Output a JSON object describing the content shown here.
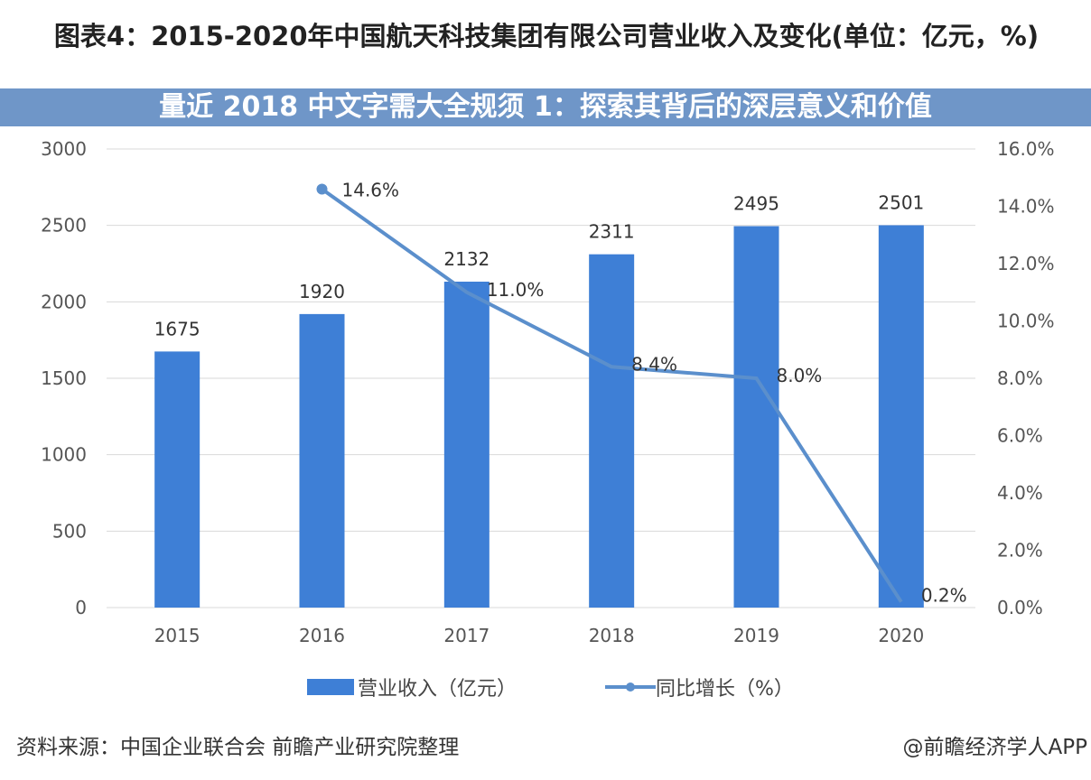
{
  "title": "图表4：2015-2020年中国航天科技集团有限公司营业收入及变化(单位：亿元，%)",
  "banner": "量近 2018 中文字需大全规须 1：探索其背后的深层意义和价值",
  "source": "资料来源：中国企业联合会 前瞻产业研究院整理",
  "brand": "@前瞻经济学人APP",
  "chart_data": {
    "type": "bar+line",
    "categories": [
      "2015",
      "2016",
      "2017",
      "2018",
      "2019",
      "2020"
    ],
    "series": [
      {
        "name": "营业收入（亿元）",
        "type": "bar",
        "axis": "left",
        "values": [
          1675,
          1920,
          2132,
          2311,
          2495,
          2501
        ],
        "labels": [
          "1675",
          "1920",
          "2132",
          "2311",
          "2495",
          "2501"
        ],
        "color": "#3e7fd6"
      },
      {
        "name": "同比增长（%）",
        "type": "line",
        "axis": "right",
        "values": [
          null,
          14.6,
          11.0,
          8.4,
          8.0,
          0.2
        ],
        "labels": [
          "",
          "14.6%",
          "11.0%",
          "8.4%",
          "8.0%",
          "0.2%"
        ],
        "color": "#5b8fcc"
      }
    ],
    "left_axis": {
      "range": [
        0,
        3000
      ],
      "ticks": [
        "0",
        "500",
        "1000",
        "1500",
        "2000",
        "2500",
        "3000"
      ]
    },
    "right_axis": {
      "range": [
        0,
        16
      ],
      "ticks": [
        "0.0%",
        "2.0%",
        "4.0%",
        "6.0%",
        "8.0%",
        "10.0%",
        "12.0%",
        "14.0%",
        "16.0%"
      ]
    },
    "grid": true,
    "legend": "bottom"
  }
}
